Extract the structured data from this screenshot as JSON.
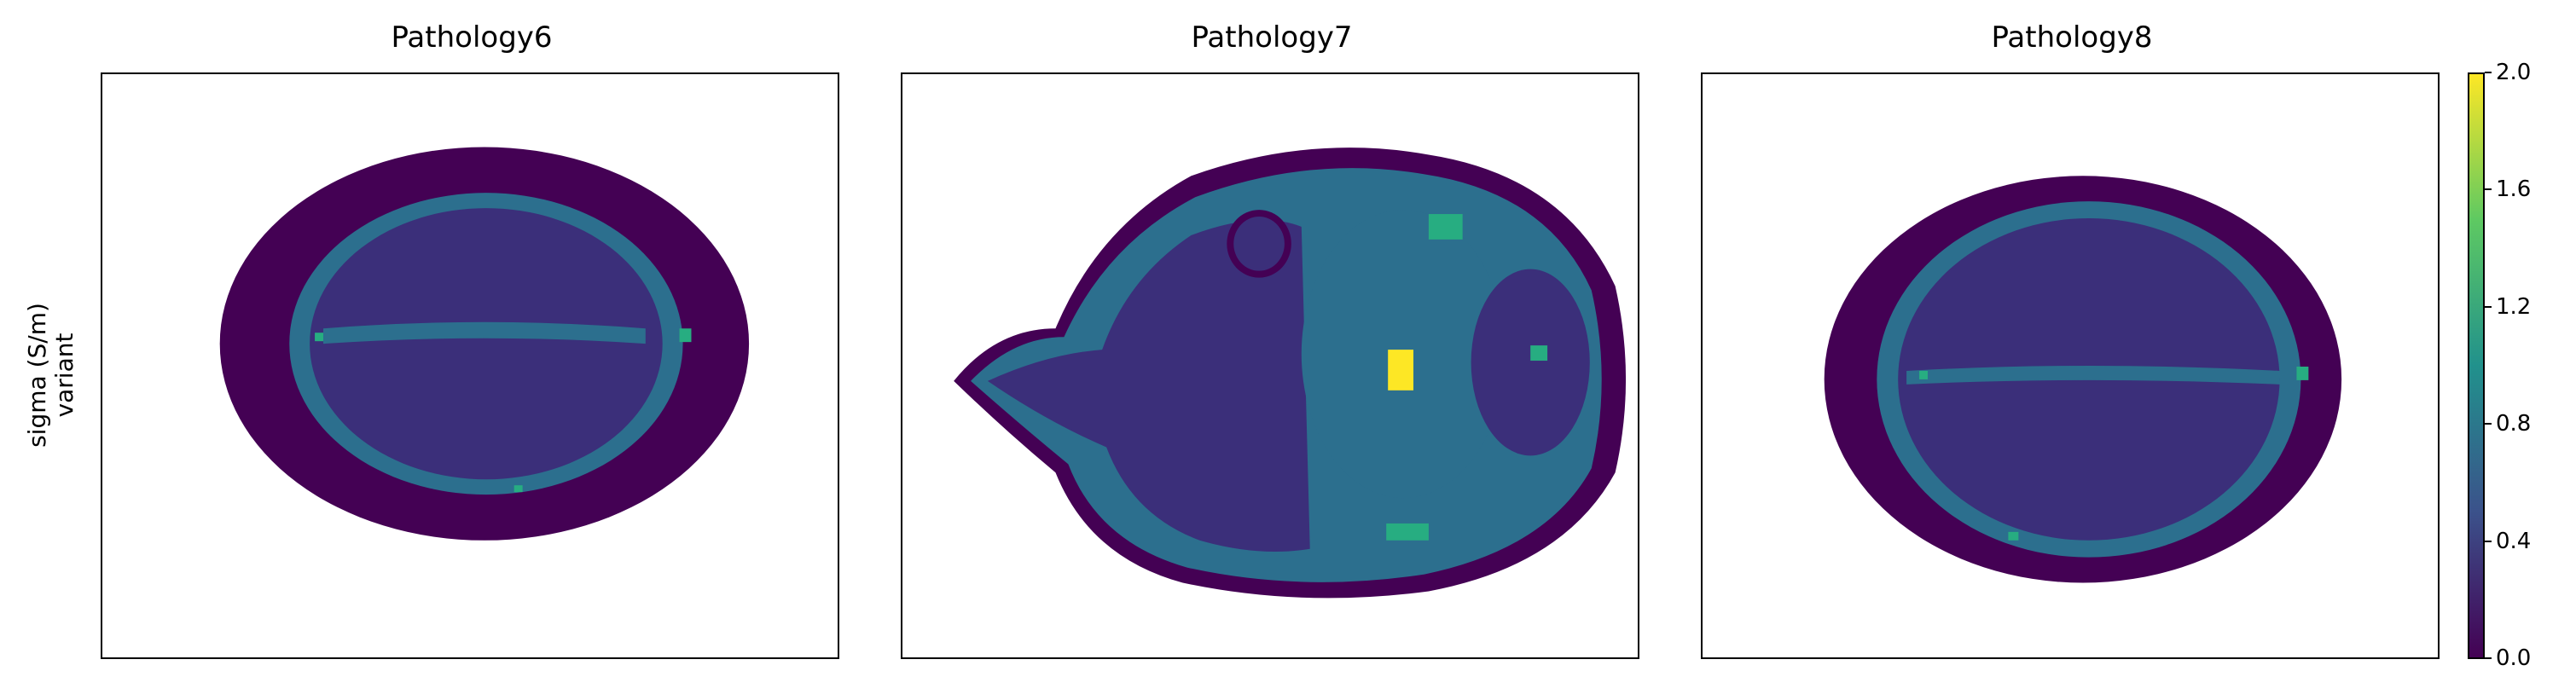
{
  "figure": {
    "ylabel_line1": "sigma (S/m)",
    "ylabel_line2": "variant",
    "panels": [
      {
        "title": "Pathology6"
      },
      {
        "title": "Pathology7"
      },
      {
        "title": "Pathology8"
      }
    ]
  },
  "colorbar": {
    "colormap": "viridis",
    "range": [
      0.0,
      2.0
    ],
    "tick_labels": [
      "0.0",
      "0.4",
      "0.8",
      "1.2",
      "1.6",
      "2.0"
    ]
  },
  "colors": {
    "background": "#440154",
    "low": "#3b2f7a",
    "mid": "#2c6f8e",
    "high": "#27ad81",
    "lesion": "#fde725"
  }
}
